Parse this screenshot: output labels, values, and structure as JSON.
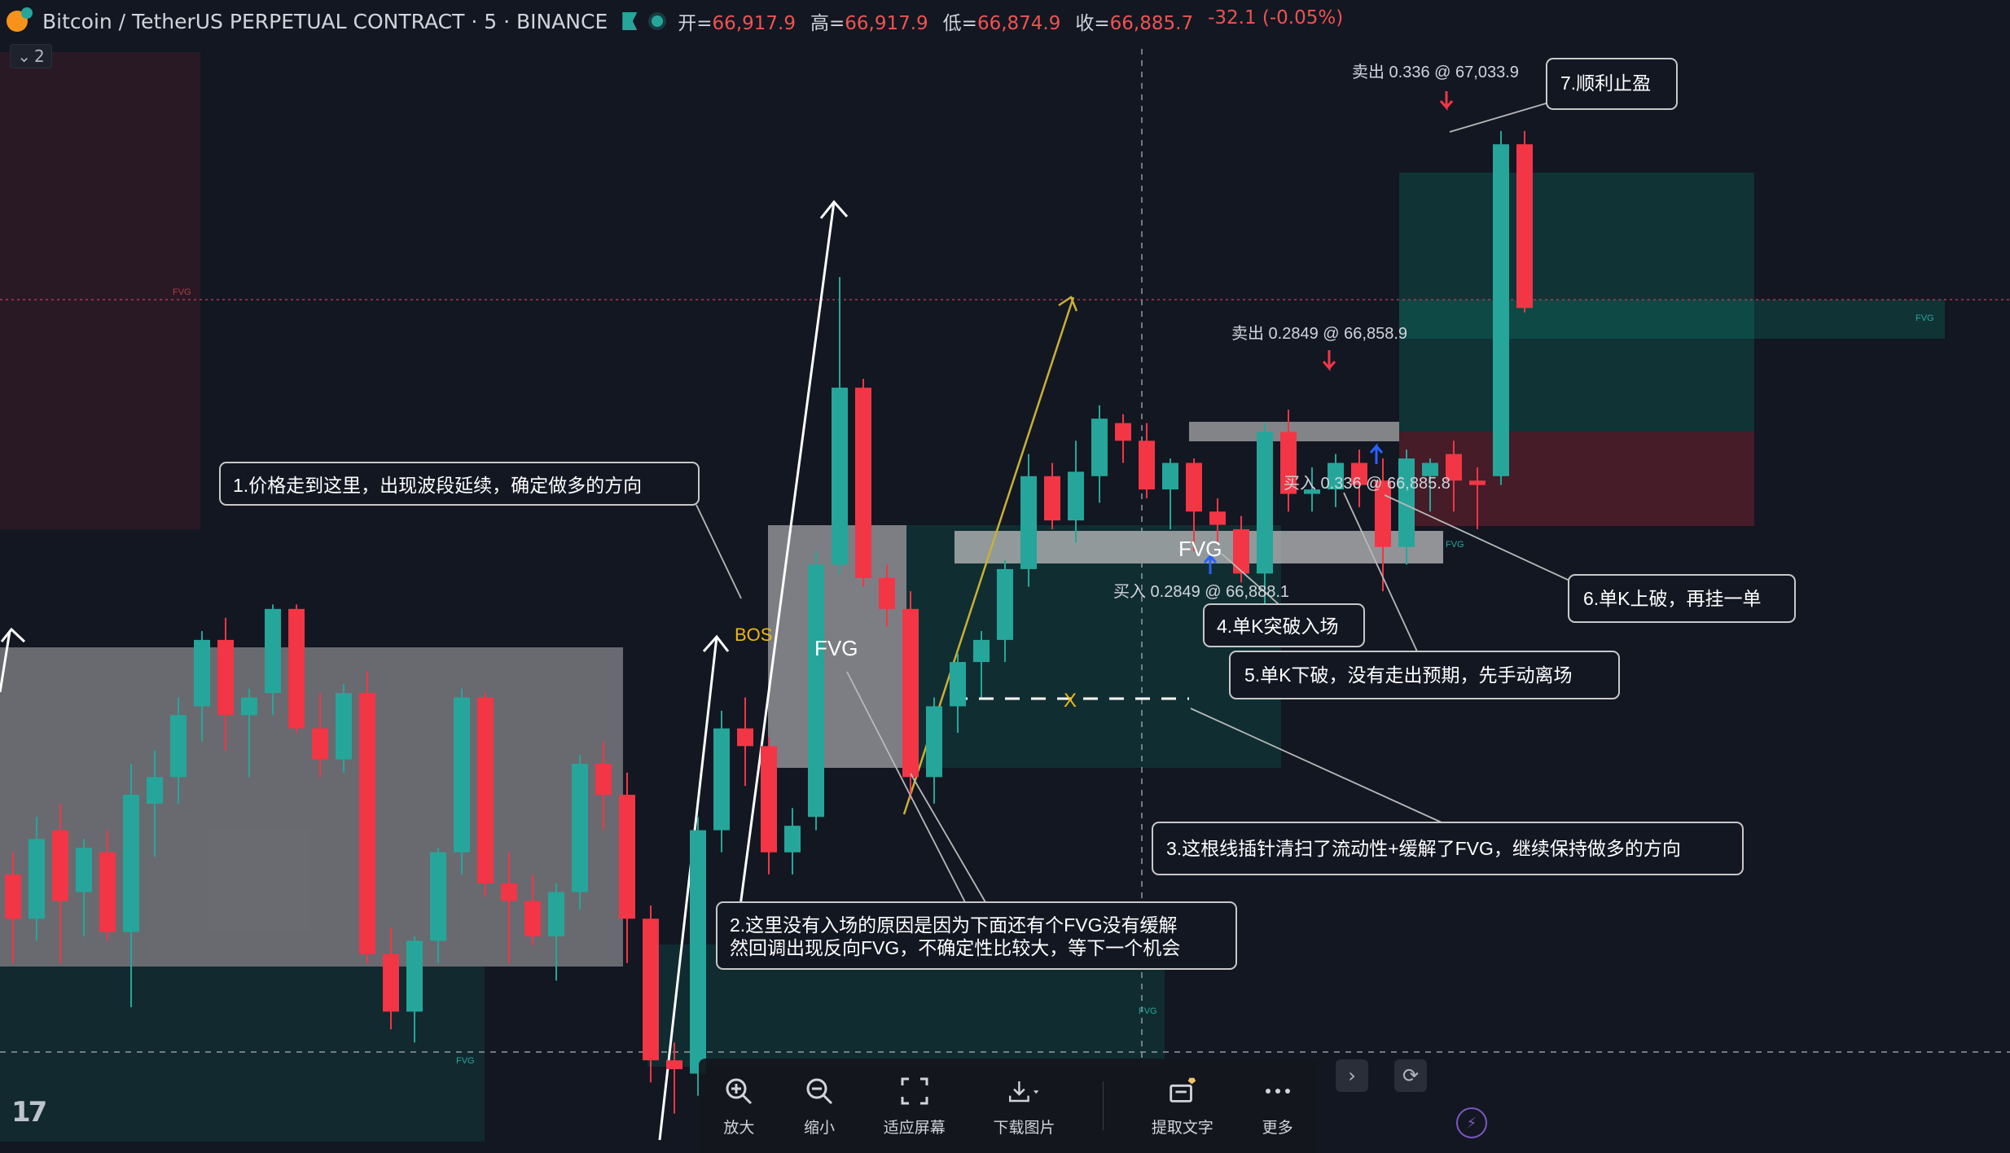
{
  "header": {
    "symbol": "Bitcoin / TetherUS PERPETUAL CONTRACT · 5 · BINANCE",
    "open_label": "开=",
    "open": "66,917.9",
    "high_label": "高=",
    "high": "66,917.9",
    "low_label": "低=",
    "low": "66,874.9",
    "close_label": "收=",
    "close": "66,885.7",
    "change": "-32.1 (-0.05%)",
    "collapse_count": "2"
  },
  "colors": {
    "background": "#131722",
    "bull": "#26a69a",
    "bear": "#f23645",
    "annotation_border": "#c8c8c8"
  },
  "chart_labels": {
    "bos": "BOS",
    "fvg_big": "FVG",
    "fvg_mid": "FVG",
    "fvg_small": "FVG",
    "x_mark": "X"
  },
  "trades": {
    "sell_1": "卖出 0.336 @ 67,033.9",
    "sell_2": "卖出 0.2849 @ 66,858.9",
    "buy_1": "买入 0.336 @ 66,885.8",
    "buy_2": "买入 0.2849 @ 66,888.1"
  },
  "annotations": {
    "note_1": "1.价格走到这里，出现波段延续，确定做多的方向",
    "note_2a": "2.这里没有入场的原因是因为下面还有个FVG没有缓解",
    "note_2b": "然回调出现反向FVG，不确定性比较大，等下一个机会",
    "note_3": "3.这根线插针清扫了流动性+缓解了FVG，继续保持做多的方向",
    "note_4": "4.单K突破入场",
    "note_5": "5.单K下破，没有走出预期，先手动离场",
    "note_6": "6.单K上破，再挂一单",
    "note_7": "7.顺利止盈"
  },
  "toolbar": {
    "zoom_in": "放大",
    "zoom_out": "缩小",
    "fit_screen": "适应屏幕",
    "download": "下载图片",
    "extract_text": "提取文字",
    "more": "更多"
  },
  "candles": [
    {
      "o": 66790,
      "h": 66795,
      "l": 66770,
      "c": 66780
    },
    {
      "o": 66780,
      "h": 66803,
      "l": 66775,
      "c": 66798
    },
    {
      "o": 66800,
      "h": 66806,
      "l": 66770,
      "c": 66784
    },
    {
      "o": 66786,
      "h": 66798,
      "l": 66776,
      "c": 66796
    },
    {
      "o": 66795,
      "h": 66800,
      "l": 66775,
      "c": 66777
    },
    {
      "o": 66777,
      "h": 66815,
      "l": 66760,
      "c": 66808
    },
    {
      "o": 66806,
      "h": 66818,
      "l": 66794,
      "c": 66812
    },
    {
      "o": 66812,
      "h": 66830,
      "l": 66806,
      "c": 66826
    },
    {
      "o": 66828,
      "h": 66845,
      "l": 66820,
      "c": 66843
    },
    {
      "o": 66843,
      "h": 66848,
      "l": 66818,
      "c": 66826
    },
    {
      "o": 66826,
      "h": 66832,
      "l": 66812,
      "c": 66830
    },
    {
      "o": 66831,
      "h": 66851,
      "l": 66826,
      "c": 66850
    },
    {
      "o": 66850,
      "h": 66851,
      "l": 66822,
      "c": 66823
    },
    {
      "o": 66823,
      "h": 66831,
      "l": 66812,
      "c": 66816
    },
    {
      "o": 66816,
      "h": 66833,
      "l": 66813,
      "c": 66831
    },
    {
      "o": 66831,
      "h": 66836,
      "l": 66770,
      "c": 66772
    },
    {
      "o": 66772,
      "h": 66778,
      "l": 66755,
      "c": 66759
    },
    {
      "o": 66759,
      "h": 66776,
      "l": 66752,
      "c": 66775
    },
    {
      "o": 66775,
      "h": 66796,
      "l": 66770,
      "c": 66795
    },
    {
      "o": 66795,
      "h": 66832,
      "l": 66790,
      "c": 66830
    },
    {
      "o": 66830,
      "h": 66831,
      "l": 66785,
      "c": 66788
    },
    {
      "o": 66788,
      "h": 66795,
      "l": 66770,
      "c": 66784
    },
    {
      "o": 66784,
      "h": 66790,
      "l": 66774,
      "c": 66776
    },
    {
      "o": 66776,
      "h": 66788,
      "l": 66766,
      "c": 66786
    },
    {
      "o": 66786,
      "h": 66817,
      "l": 66782,
      "c": 66815
    },
    {
      "o": 66815,
      "h": 66820,
      "l": 66800,
      "c": 66808
    },
    {
      "o": 66808,
      "h": 66813,
      "l": 66770,
      "c": 66780
    },
    {
      "o": 66780,
      "h": 66783,
      "l": 66743,
      "c": 66748
    },
    {
      "o": 66748,
      "h": 66752,
      "l": 66736,
      "c": 66746
    },
    {
      "o": 66745,
      "h": 66803,
      "l": 66740,
      "c": 66800
    },
    {
      "o": 66800,
      "h": 66827,
      "l": 66795,
      "c": 66823
    },
    {
      "o": 66823,
      "h": 66830,
      "l": 66810,
      "c": 66819
    },
    {
      "o": 66819,
      "h": 66821,
      "l": 66790,
      "c": 66795
    },
    {
      "o": 66795,
      "h": 66805,
      "l": 66790,
      "c": 66801
    },
    {
      "o": 66803,
      "h": 66863,
      "l": 66800,
      "c": 66860
    },
    {
      "o": 66860,
      "h": 66925,
      "l": 66858,
      "c": 66900
    },
    {
      "o": 66900,
      "h": 66902,
      "l": 66855,
      "c": 66857
    },
    {
      "o": 66857,
      "h": 66860,
      "l": 66846,
      "c": 66850
    },
    {
      "o": 66850,
      "h": 66854,
      "l": 66807,
      "c": 66812
    },
    {
      "o": 66812,
      "h": 66830,
      "l": 66806,
      "c": 66828
    },
    {
      "o": 66828,
      "h": 66840,
      "l": 66822,
      "c": 66838
    },
    {
      "o": 66838,
      "h": 66845,
      "l": 66830,
      "c": 66843
    },
    {
      "o": 66843,
      "h": 66861,
      "l": 66838,
      "c": 66859
    },
    {
      "o": 66859,
      "h": 66885,
      "l": 66855,
      "c": 66880
    },
    {
      "o": 66880,
      "h": 66883,
      "l": 66868,
      "c": 66870
    },
    {
      "o": 66870,
      "h": 66888,
      "l": 66865,
      "c": 66881
    },
    {
      "o": 66880,
      "h": 66896,
      "l": 66874,
      "c": 66893
    },
    {
      "o": 66892,
      "h": 66894,
      "l": 66883,
      "c": 66888
    },
    {
      "o": 66888,
      "h": 66892,
      "l": 66875,
      "c": 66877
    },
    {
      "o": 66877,
      "h": 66884,
      "l": 66868,
      "c": 66883
    },
    {
      "o": 66883,
      "h": 66884,
      "l": 66863,
      "c": 66872
    },
    {
      "o": 66872,
      "h": 66875,
      "l": 66865,
      "c": 66869
    },
    {
      "o": 66868,
      "h": 66871,
      "l": 66856,
      "c": 66858
    },
    {
      "o": 66858,
      "h": 66892,
      "l": 66850,
      "c": 66890
    },
    {
      "o": 66890,
      "h": 66895,
      "l": 66872,
      "c": 66876
    },
    {
      "o": 66876,
      "h": 66882,
      "l": 66872,
      "c": 66877
    },
    {
      "o": 66877,
      "h": 66885,
      "l": 66873,
      "c": 66883
    },
    {
      "o": 66883,
      "h": 66886,
      "l": 66873,
      "c": 66878
    },
    {
      "o": 66879,
      "h": 66884,
      "l": 66854,
      "c": 66864
    },
    {
      "o": 66864,
      "h": 66886,
      "l": 66860,
      "c": 66884
    },
    {
      "o": 66880,
      "h": 66884,
      "l": 66872,
      "c": 66883
    },
    {
      "o": 66885,
      "h": 66888,
      "l": 66872,
      "c": 66879
    },
    {
      "o": 66879,
      "h": 66882,
      "l": 66868,
      "c": 66878
    },
    {
      "o": 66880,
      "h": 66958,
      "l": 66878,
      "c": 66955
    },
    {
      "o": 66955,
      "h": 66958,
      "l": 66917,
      "c": 66918
    }
  ]
}
